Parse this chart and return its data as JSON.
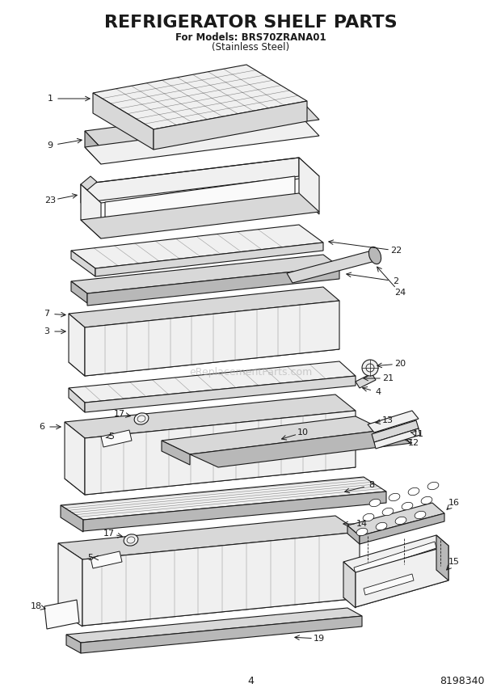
{
  "title": "REFRIGERATOR SHELF PARTS",
  "subtitle_line1": "For Models: BRS70ZRANA01",
  "subtitle_line2": "(Stainless Steel)",
  "page_number": "4",
  "part_number": "8198340",
  "background_color": "#ffffff",
  "text_color": "#1a1a1a",
  "line_color": "#1a1a1a",
  "title_fontsize": 16,
  "subtitle_fontsize": 8.5,
  "footer_fontsize": 9,
  "watermark": "eReplacementParts.com",
  "lw": 0.8
}
